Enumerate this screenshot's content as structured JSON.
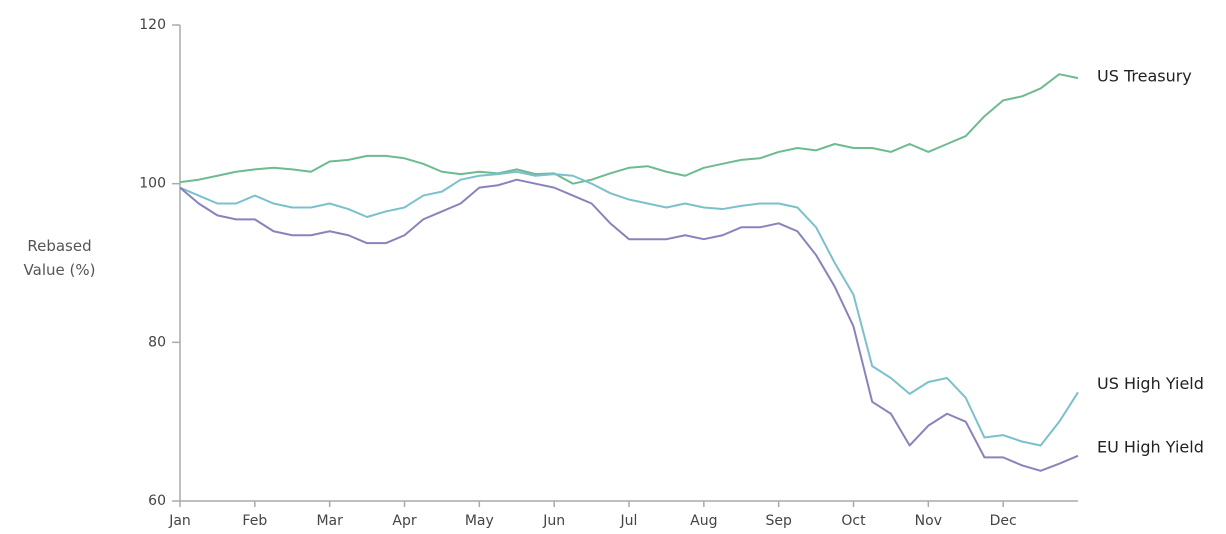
{
  "chart_data": {
    "type": "line",
    "y_label": "Rebased Value (%)",
    "x": [
      0,
      0.25,
      0.5,
      0.75,
      1,
      1.25,
      1.5,
      1.75,
      2,
      2.25,
      2.5,
      2.75,
      3,
      3.25,
      3.5,
      3.75,
      4,
      4.25,
      4.5,
      4.75,
      5,
      5.25,
      5.5,
      5.75,
      6,
      6.25,
      6.5,
      6.75,
      7,
      7.25,
      7.5,
      7.75,
      8,
      8.25,
      8.5,
      8.75,
      9,
      9.25,
      9.5,
      9.75,
      10,
      10.25,
      10.5,
      10.75,
      11,
      11.25,
      11.5,
      11.75,
      12
    ],
    "series": [
      {
        "name": "US Treasury",
        "color": "#6dbb8e",
        "values": [
          100.2,
          100.5,
          101,
          101.5,
          101.8,
          102,
          101.8,
          101.5,
          102.8,
          103,
          103.5,
          103.5,
          103.2,
          102.5,
          101.5,
          101.2,
          101.5,
          101.3,
          101.8,
          101.2,
          101.3,
          100,
          100.5,
          101.3,
          102,
          102.2,
          101.5,
          101,
          102,
          102.5,
          103,
          103.2,
          104,
          104.5,
          104.2,
          105,
          104.5,
          104.5,
          104,
          105,
          104,
          105,
          106,
          108.5,
          110.5,
          111,
          112,
          113.8,
          113.3
        ]
      },
      {
        "name": "US High Yield",
        "color": "#7cc0cc",
        "values": [
          99.5,
          98.5,
          97.5,
          97.5,
          98.5,
          97.5,
          97,
          97,
          97.5,
          96.8,
          95.8,
          96.5,
          97,
          98.5,
          99,
          100.5,
          101,
          101.2,
          101.5,
          101,
          101.2,
          101,
          100,
          98.8,
          98,
          97.5,
          97,
          97.5,
          97,
          96.8,
          97.2,
          97.5,
          97.5,
          97,
          94.5,
          90,
          86,
          77,
          75.5,
          73.5,
          75,
          75.5,
          73,
          68,
          68.3,
          67.5,
          67,
          70,
          73.7
        ]
      },
      {
        "name": "EU High Yield",
        "color": "#8a82bb",
        "values": [
          99.5,
          97.5,
          96,
          95.5,
          95.5,
          94,
          93.5,
          93.5,
          94,
          93.5,
          92.5,
          92.5,
          93.5,
          95.5,
          96.5,
          97.5,
          99.5,
          99.8,
          100.5,
          100,
          99.5,
          98.5,
          97.5,
          95,
          93,
          93,
          93,
          93.5,
          93,
          93.5,
          94.5,
          94.5,
          95,
          94,
          91,
          87,
          82,
          72.5,
          71,
          67,
          69.5,
          71,
          70,
          65.5,
          65.5,
          64.5,
          63.8,
          64.7,
          65.7
        ]
      }
    ],
    "xlim": [
      0,
      12
    ],
    "xticks": [
      {
        "value": 0,
        "label": "Jan"
      },
      {
        "value": 1,
        "label": "Feb"
      },
      {
        "value": 2,
        "label": "Mar"
      },
      {
        "value": 3,
        "label": "Apr"
      },
      {
        "value": 4,
        "label": "May"
      },
      {
        "value": 5,
        "label": "Jun"
      },
      {
        "value": 6,
        "label": "Jul"
      },
      {
        "value": 7,
        "label": "Aug"
      },
      {
        "value": 8,
        "label": "Sep"
      },
      {
        "value": 9,
        "label": "Oct"
      },
      {
        "value": 10,
        "label": "Nov"
      },
      {
        "value": 11,
        "label": "Dec"
      }
    ],
    "ylim": [
      60,
      120
    ],
    "yticks": [
      60,
      80,
      100,
      120
    ],
    "grid": false
  }
}
